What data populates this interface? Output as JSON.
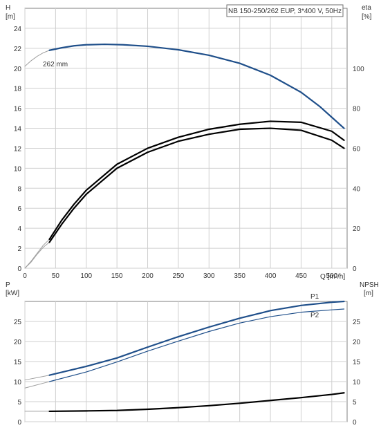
{
  "chart_data": [
    {
      "type": "line",
      "title": "NB 150-250/262 EUP, 3*400 V, 50Hz",
      "y_left_label_name": "H",
      "y_left_label_unit": "[m]",
      "y_right_label_name": "eta",
      "y_right_label_unit": "[%]",
      "xlabel": "Q [m³/h]",
      "x_range": [
        0,
        525
      ],
      "x_ticks": [
        0,
        50,
        100,
        150,
        200,
        250,
        300,
        350,
        400,
        450,
        500
      ],
      "x_tick_labels": [
        "0",
        "50",
        "100",
        "150",
        "200",
        "250",
        "300",
        "350",
        "400",
        "450",
        "500"
      ],
      "x_end_label": "Q [m³/h]",
      "y_left_range": [
        0,
        26
      ],
      "y_left_ticks": [
        0,
        2,
        4,
        6,
        8,
        10,
        12,
        14,
        16,
        18,
        20,
        22,
        24
      ],
      "y_right_range": [
        0,
        130
      ],
      "y_right_ticks": [
        0,
        20,
        40,
        60,
        80,
        100
      ],
      "grid": true,
      "curve_label": "262 mm",
      "series": [
        {
          "axis": "left",
          "color": "#1f4f8a",
          "kind": "head-extrapolated",
          "points": [
            [
              0,
              20.2
            ],
            [
              10,
              20.75
            ],
            [
              20,
              21.2
            ],
            [
              30,
              21.55
            ],
            [
              40,
              21.8
            ]
          ]
        },
        {
          "axis": "left",
          "color": "#1f4f8a",
          "kind": "head",
          "points": [
            [
              40,
              21.8
            ],
            [
              60,
              22.05
            ],
            [
              80,
              22.25
            ],
            [
              100,
              22.35
            ],
            [
              130,
              22.4
            ],
            [
              160,
              22.35
            ],
            [
              200,
              22.2
            ],
            [
              250,
              21.85
            ],
            [
              300,
              21.3
            ],
            [
              350,
              20.5
            ],
            [
              400,
              19.3
            ],
            [
              450,
              17.6
            ],
            [
              480,
              16.2
            ],
            [
              500,
              15.1
            ],
            [
              520,
              14.0
            ]
          ]
        },
        {
          "axis": "right",
          "color": "#000000",
          "kind": "eta-extrapolated-1",
          "points": [
            [
              0,
              0
            ],
            [
              10,
              3
            ],
            [
              20,
              7
            ],
            [
              30,
              10.5
            ],
            [
              40,
              13
            ]
          ]
        },
        {
          "axis": "right",
          "color": "#000000",
          "kind": "eta-1",
          "points": [
            [
              40,
              13
            ],
            [
              60,
              22
            ],
            [
              80,
              30
            ],
            [
              100,
              37
            ],
            [
              150,
              50
            ],
            [
              200,
              58
            ],
            [
              250,
              63.5
            ],
            [
              300,
              67
            ],
            [
              350,
              69.5
            ],
            [
              400,
              70
            ],
            [
              450,
              69
            ],
            [
              500,
              64
            ],
            [
              520,
              60
            ]
          ]
        },
        {
          "axis": "right",
          "color": "#000000",
          "kind": "eta-extrapolated-2",
          "points": [
            [
              0,
              0
            ],
            [
              10,
              3.5
            ],
            [
              20,
              7.5
            ],
            [
              30,
              11.5
            ],
            [
              40,
              14.5
            ]
          ]
        },
        {
          "axis": "right",
          "color": "#000000",
          "kind": "eta-2",
          "points": [
            [
              40,
              14.5
            ],
            [
              60,
              24
            ],
            [
              80,
              32
            ],
            [
              100,
              39
            ],
            [
              150,
              52
            ],
            [
              200,
              60
            ],
            [
              250,
              65.5
            ],
            [
              300,
              69.5
            ],
            [
              350,
              72
            ],
            [
              400,
              73.5
            ],
            [
              450,
              73
            ],
            [
              500,
              68.5
            ],
            [
              520,
              64
            ]
          ]
        }
      ]
    },
    {
      "type": "line",
      "y_left_label_name": "P",
      "y_left_label_unit": "[kW]",
      "y_right_label_name": "NPSH",
      "y_right_label_unit": "[m]",
      "x_range": [
        0,
        525
      ],
      "x_ticks": [
        0,
        50,
        100,
        150,
        200,
        250,
        300,
        350,
        400,
        450,
        500
      ],
      "y_left_range": [
        0,
        30
      ],
      "y_left_ticks": [
        0,
        5,
        10,
        15,
        20,
        25
      ],
      "y_right_range": [
        0,
        30
      ],
      "y_right_ticks": [
        0,
        5,
        10,
        15,
        20,
        25
      ],
      "grid": true,
      "labels": {
        "p1": "P1",
        "p2": "P2"
      },
      "series": [
        {
          "axis": "left",
          "color": "#1f4f8a",
          "kind": "p1-extrapolated",
          "points": [
            [
              0,
              10.4
            ],
            [
              10,
              10.7
            ],
            [
              20,
              11.0
            ],
            [
              30,
              11.3
            ],
            [
              40,
              11.6
            ]
          ]
        },
        {
          "axis": "left",
          "color": "#1f4f8a",
          "kind": "p1",
          "points": [
            [
              40,
              11.6
            ],
            [
              100,
              13.8
            ],
            [
              150,
              15.9
            ],
            [
              200,
              18.6
            ],
            [
              250,
              21.2
            ],
            [
              300,
              23.6
            ],
            [
              350,
              25.8
            ],
            [
              400,
              27.7
            ],
            [
              450,
              29.0
            ],
            [
              500,
              29.8
            ],
            [
              520,
              30.0
            ]
          ]
        },
        {
          "axis": "left",
          "color": "#1f4f8a",
          "kind": "p2-extrapolated",
          "points": [
            [
              0,
              8.4
            ],
            [
              10,
              8.8
            ],
            [
              20,
              9.2
            ],
            [
              30,
              9.6
            ],
            [
              40,
              10.0
            ]
          ]
        },
        {
          "axis": "left",
          "color": "#1f4f8a",
          "kind": "p2",
          "points": [
            [
              40,
              10.0
            ],
            [
              100,
              12.4
            ],
            [
              150,
              14.9
            ],
            [
              200,
              17.6
            ],
            [
              250,
              20.1
            ],
            [
              300,
              22.5
            ],
            [
              350,
              24.6
            ],
            [
              400,
              26.2
            ],
            [
              450,
              27.3
            ],
            [
              500,
              27.9
            ],
            [
              520,
              28.1
            ]
          ]
        },
        {
          "axis": "right",
          "color": "#000000",
          "kind": "npsh-extrapolated",
          "points": [
            [
              0,
              2.6
            ],
            [
              20,
              2.6
            ],
            [
              40,
              2.6
            ]
          ]
        },
        {
          "axis": "right",
          "color": "#000000",
          "kind": "npsh",
          "points": [
            [
              40,
              2.6
            ],
            [
              100,
              2.7
            ],
            [
              150,
              2.8
            ],
            [
              200,
              3.1
            ],
            [
              250,
              3.5
            ],
            [
              300,
              4.0
            ],
            [
              350,
              4.6
            ],
            [
              400,
              5.3
            ],
            [
              450,
              6.0
            ],
            [
              500,
              6.8
            ],
            [
              520,
              7.2
            ]
          ]
        }
      ]
    }
  ]
}
